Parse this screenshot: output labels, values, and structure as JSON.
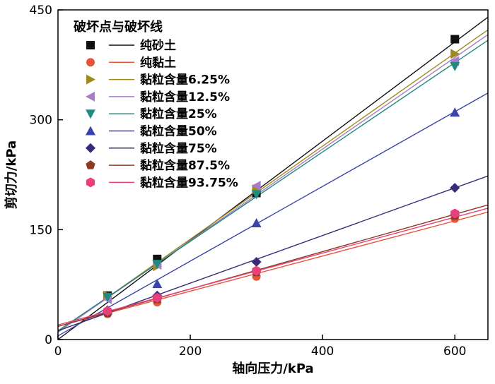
{
  "chart_data": {
    "type": "scatter",
    "xlabel": "轴向压力/kPa",
    "ylabel": "剪切力/kPa",
    "xlim": [
      0,
      650
    ],
    "ylim": [
      0,
      450
    ],
    "xticks": [
      0,
      200,
      400,
      600
    ],
    "yticks": [
      0,
      150,
      300,
      450
    ],
    "grid": false,
    "legend_title": "破坏点与破坏线",
    "legend_position": "top-left",
    "series": [
      {
        "name": "纯砂土",
        "marker": "square",
        "color": "#111111",
        "line_color": "#111111",
        "points": [
          [
            75,
            60
          ],
          [
            150,
            110
          ],
          [
            300,
            200
          ],
          [
            600,
            410
          ]
        ],
        "fit": [
          0,
          0.677
        ]
      },
      {
        "name": "纯黏土",
        "marker": "circle",
        "color": "#e8553a",
        "line_color": "#e8553a",
        "points": [
          [
            75,
            35
          ],
          [
            150,
            51
          ],
          [
            300,
            86
          ],
          [
            600,
            165
          ]
        ],
        "fit": [
          18,
          0.24
        ]
      },
      {
        "name": "黏粒含量6.25%",
        "marker": "triangle-right",
        "color": "#9e8a1a",
        "line_color": "#9e8a1a",
        "points": [
          [
            75,
            60
          ],
          [
            150,
            100
          ],
          [
            300,
            205
          ],
          [
            600,
            390
          ]
        ],
        "fit": [
          10,
          0.635
        ]
      },
      {
        "name": "黏粒含量12.5%",
        "marker": "triangle-left",
        "color": "#a77cc9",
        "line_color": "#a77cc9",
        "points": [
          [
            75,
            55
          ],
          [
            150,
            102
          ],
          [
            300,
            210
          ],
          [
            600,
            380
          ]
        ],
        "fit": [
          10,
          0.625
        ]
      },
      {
        "name": "黏粒含量25%",
        "marker": "triangle-down",
        "color": "#1e8a80",
        "line_color": "#1e8a80",
        "points": [
          [
            75,
            58
          ],
          [
            150,
            103
          ],
          [
            300,
            198
          ],
          [
            600,
            373
          ]
        ],
        "fit": [
          12,
          0.61
        ]
      },
      {
        "name": "黏粒含量50%",
        "marker": "triangle-up",
        "color": "#3b44a8",
        "line_color": "#3b44a8",
        "points": [
          [
            75,
            40
          ],
          [
            150,
            76
          ],
          [
            300,
            159
          ],
          [
            600,
            310
          ]
        ],
        "fit": [
          5,
          0.51
        ]
      },
      {
        "name": "黏粒含量75%",
        "marker": "diamond",
        "color": "#3a2a78",
        "line_color": "#3a2a78",
        "points": [
          [
            75,
            40
          ],
          [
            150,
            60
          ],
          [
            300,
            106
          ],
          [
            600,
            207
          ]
        ],
        "fit": [
          12,
          0.325
        ]
      },
      {
        "name": "黏粒含量87.5%",
        "marker": "pentagon",
        "color": "#8c3a22",
        "line_color": "#8c3a22",
        "points": [
          [
            75,
            36
          ],
          [
            150,
            55
          ],
          [
            300,
            92
          ],
          [
            600,
            169
          ]
        ],
        "fit": [
          18,
          0.255
        ]
      },
      {
        "name": "黏粒含量93.75%",
        "marker": "hexagon",
        "color": "#e8407a",
        "line_color": "#e8407a",
        "points": [
          [
            75,
            39
          ],
          [
            150,
            57
          ],
          [
            300,
            94
          ],
          [
            600,
            172
          ]
        ],
        "fit": [
          20,
          0.245
        ]
      }
    ]
  }
}
